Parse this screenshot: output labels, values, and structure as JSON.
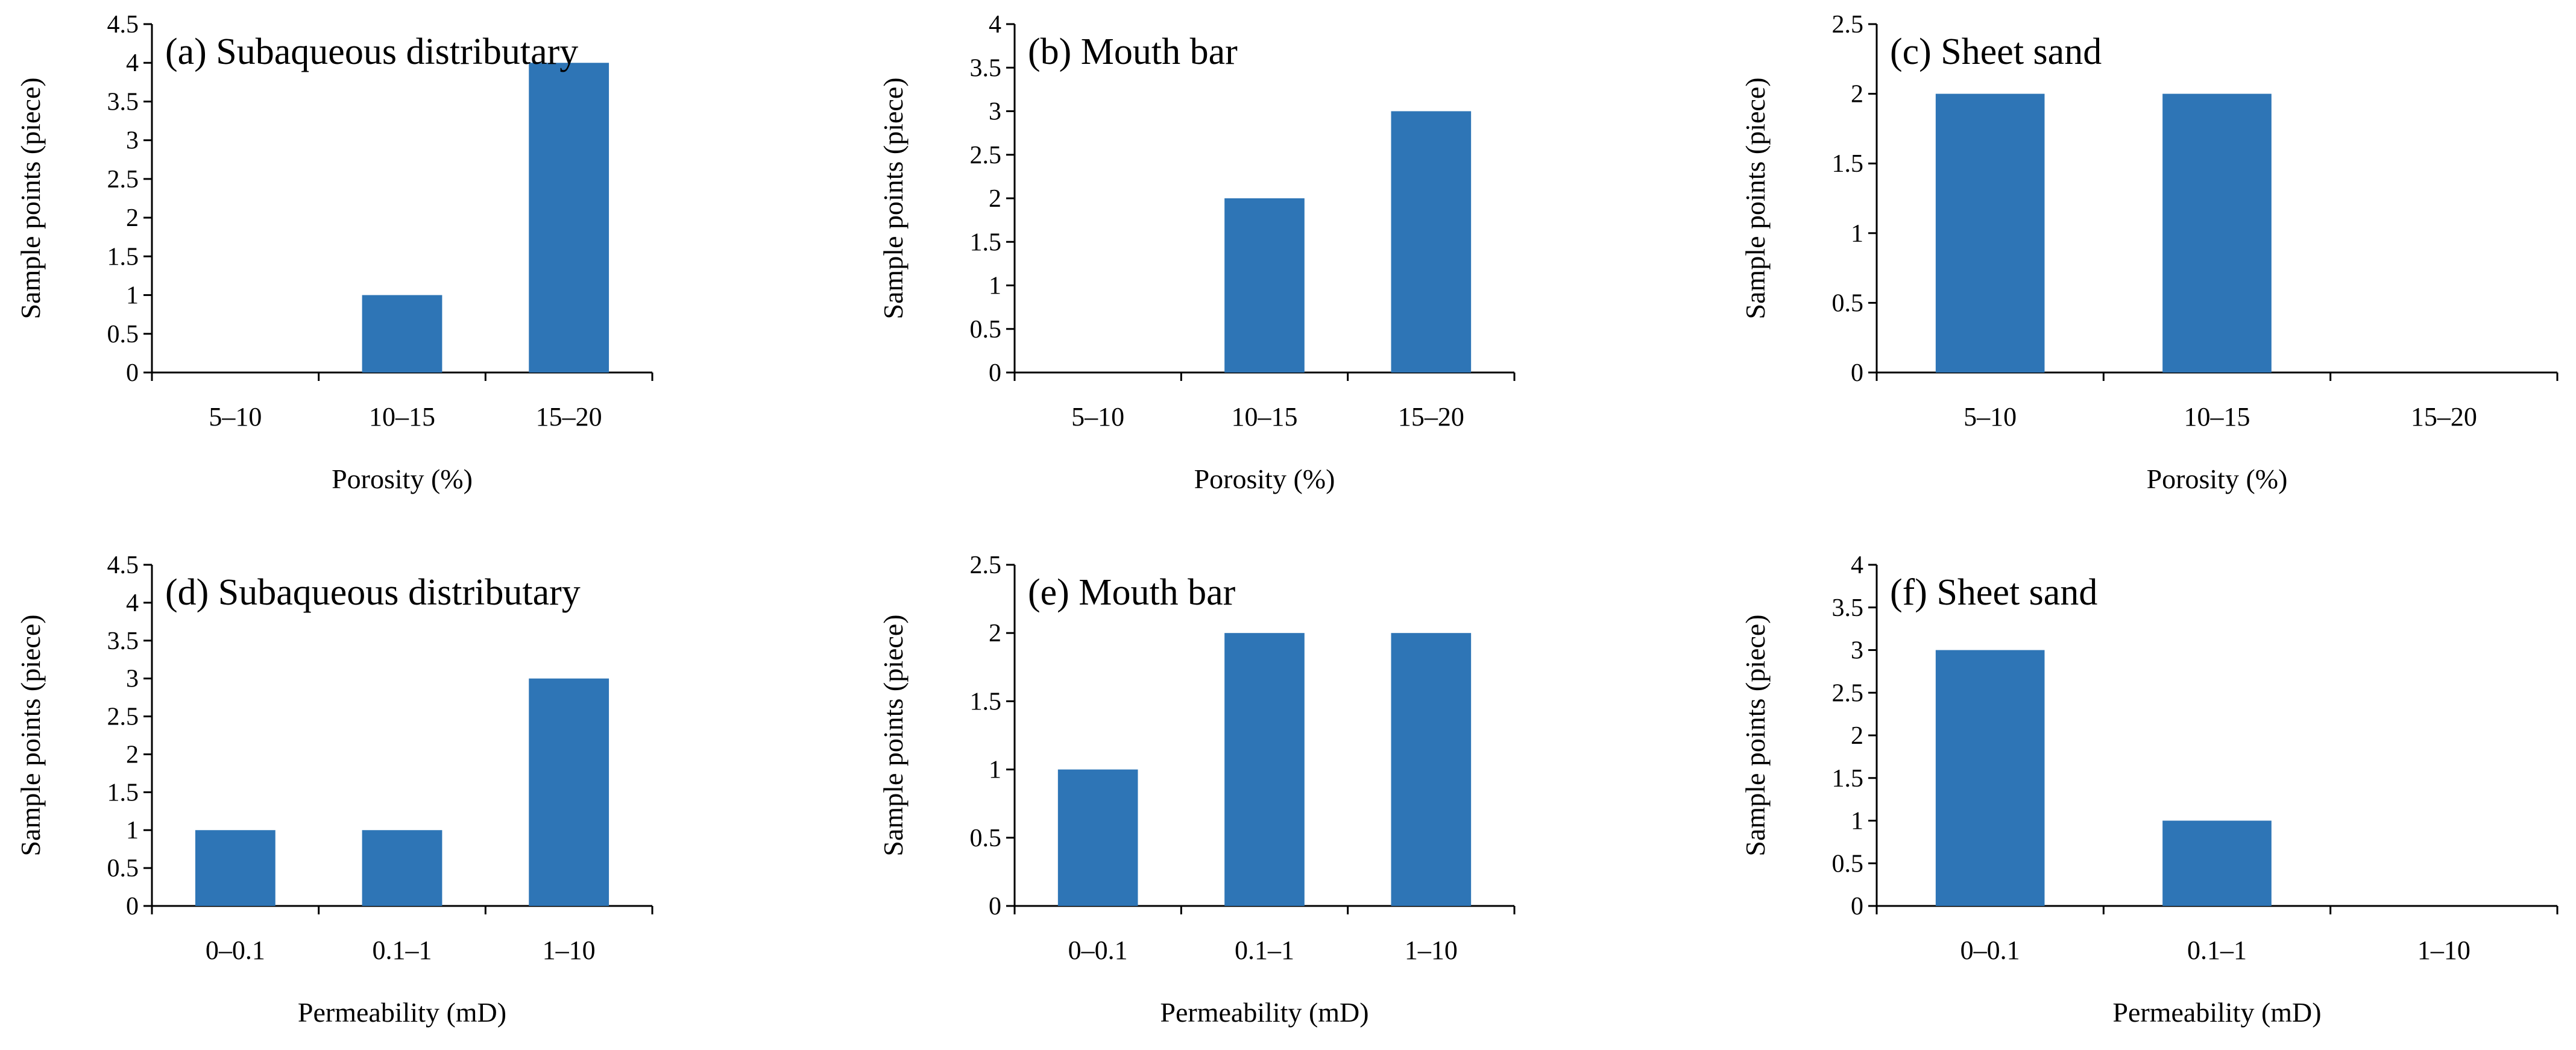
{
  "colors": {
    "bar": "#2E75B6",
    "axis": "#000000",
    "background": "#FFFFFF"
  },
  "chart_data": [
    {
      "type": "bar",
      "title": "(a) Subaqueous distributary",
      "categories": [
        "5–10",
        "10–15",
        "15–20"
      ],
      "values": [
        0,
        1,
        4
      ],
      "xlabel": "Porosity (%)",
      "ylabel": "Sample points (piece)",
      "ylim": [
        0,
        4.5
      ],
      "ystep": 0.5,
      "grid": false,
      "legend": "none"
    },
    {
      "type": "bar",
      "title": "(b) Mouth bar",
      "categories": [
        "5–10",
        "10–15",
        "15–20"
      ],
      "values": [
        0,
        2,
        3
      ],
      "xlabel": "Porosity (%)",
      "ylabel": "Sample points (piece)",
      "ylim": [
        0,
        4
      ],
      "ystep": 0.5,
      "grid": false,
      "legend": "none"
    },
    {
      "type": "bar",
      "title": "(c)  Sheet sand",
      "categories": [
        "5–10",
        "10–15",
        "15–20"
      ],
      "values": [
        2,
        2,
        0
      ],
      "xlabel": "Porosity (%)",
      "ylabel": "Sample points (piece)",
      "ylim": [
        0,
        2.5
      ],
      "ystep": 0.5,
      "grid": false,
      "legend": "none"
    },
    {
      "type": "bar",
      "title": "(d) Subaqueous distributary",
      "categories": [
        "0–0.1",
        "0.1–1",
        "1–10"
      ],
      "values": [
        1,
        1,
        3
      ],
      "xlabel": "Permeability (mD)",
      "ylabel": "Sample points (piece)",
      "ylim": [
        0,
        4.5
      ],
      "ystep": 0.5,
      "grid": false,
      "legend": "none"
    },
    {
      "type": "bar",
      "title": "(e) Mouth bar",
      "categories": [
        "0–0.1",
        "0.1–1",
        "1–10"
      ],
      "values": [
        1,
        2,
        2
      ],
      "xlabel": "Permeability (mD)",
      "ylabel": "Sample points (piece)",
      "ylim": [
        0,
        2.5
      ],
      "ystep": 0.5,
      "grid": false,
      "legend": "none"
    },
    {
      "type": "bar",
      "title": "(f) Sheet sand",
      "categories": [
        "0–0.1",
        "0.1–1",
        "1–10"
      ],
      "values": [
        3,
        1,
        0
      ],
      "xlabel": "Permeability (mD)",
      "ylabel": "Sample points (piece)",
      "ylim": [
        0,
        4
      ],
      "ystep": 0.5,
      "grid": false,
      "legend": "none"
    }
  ]
}
